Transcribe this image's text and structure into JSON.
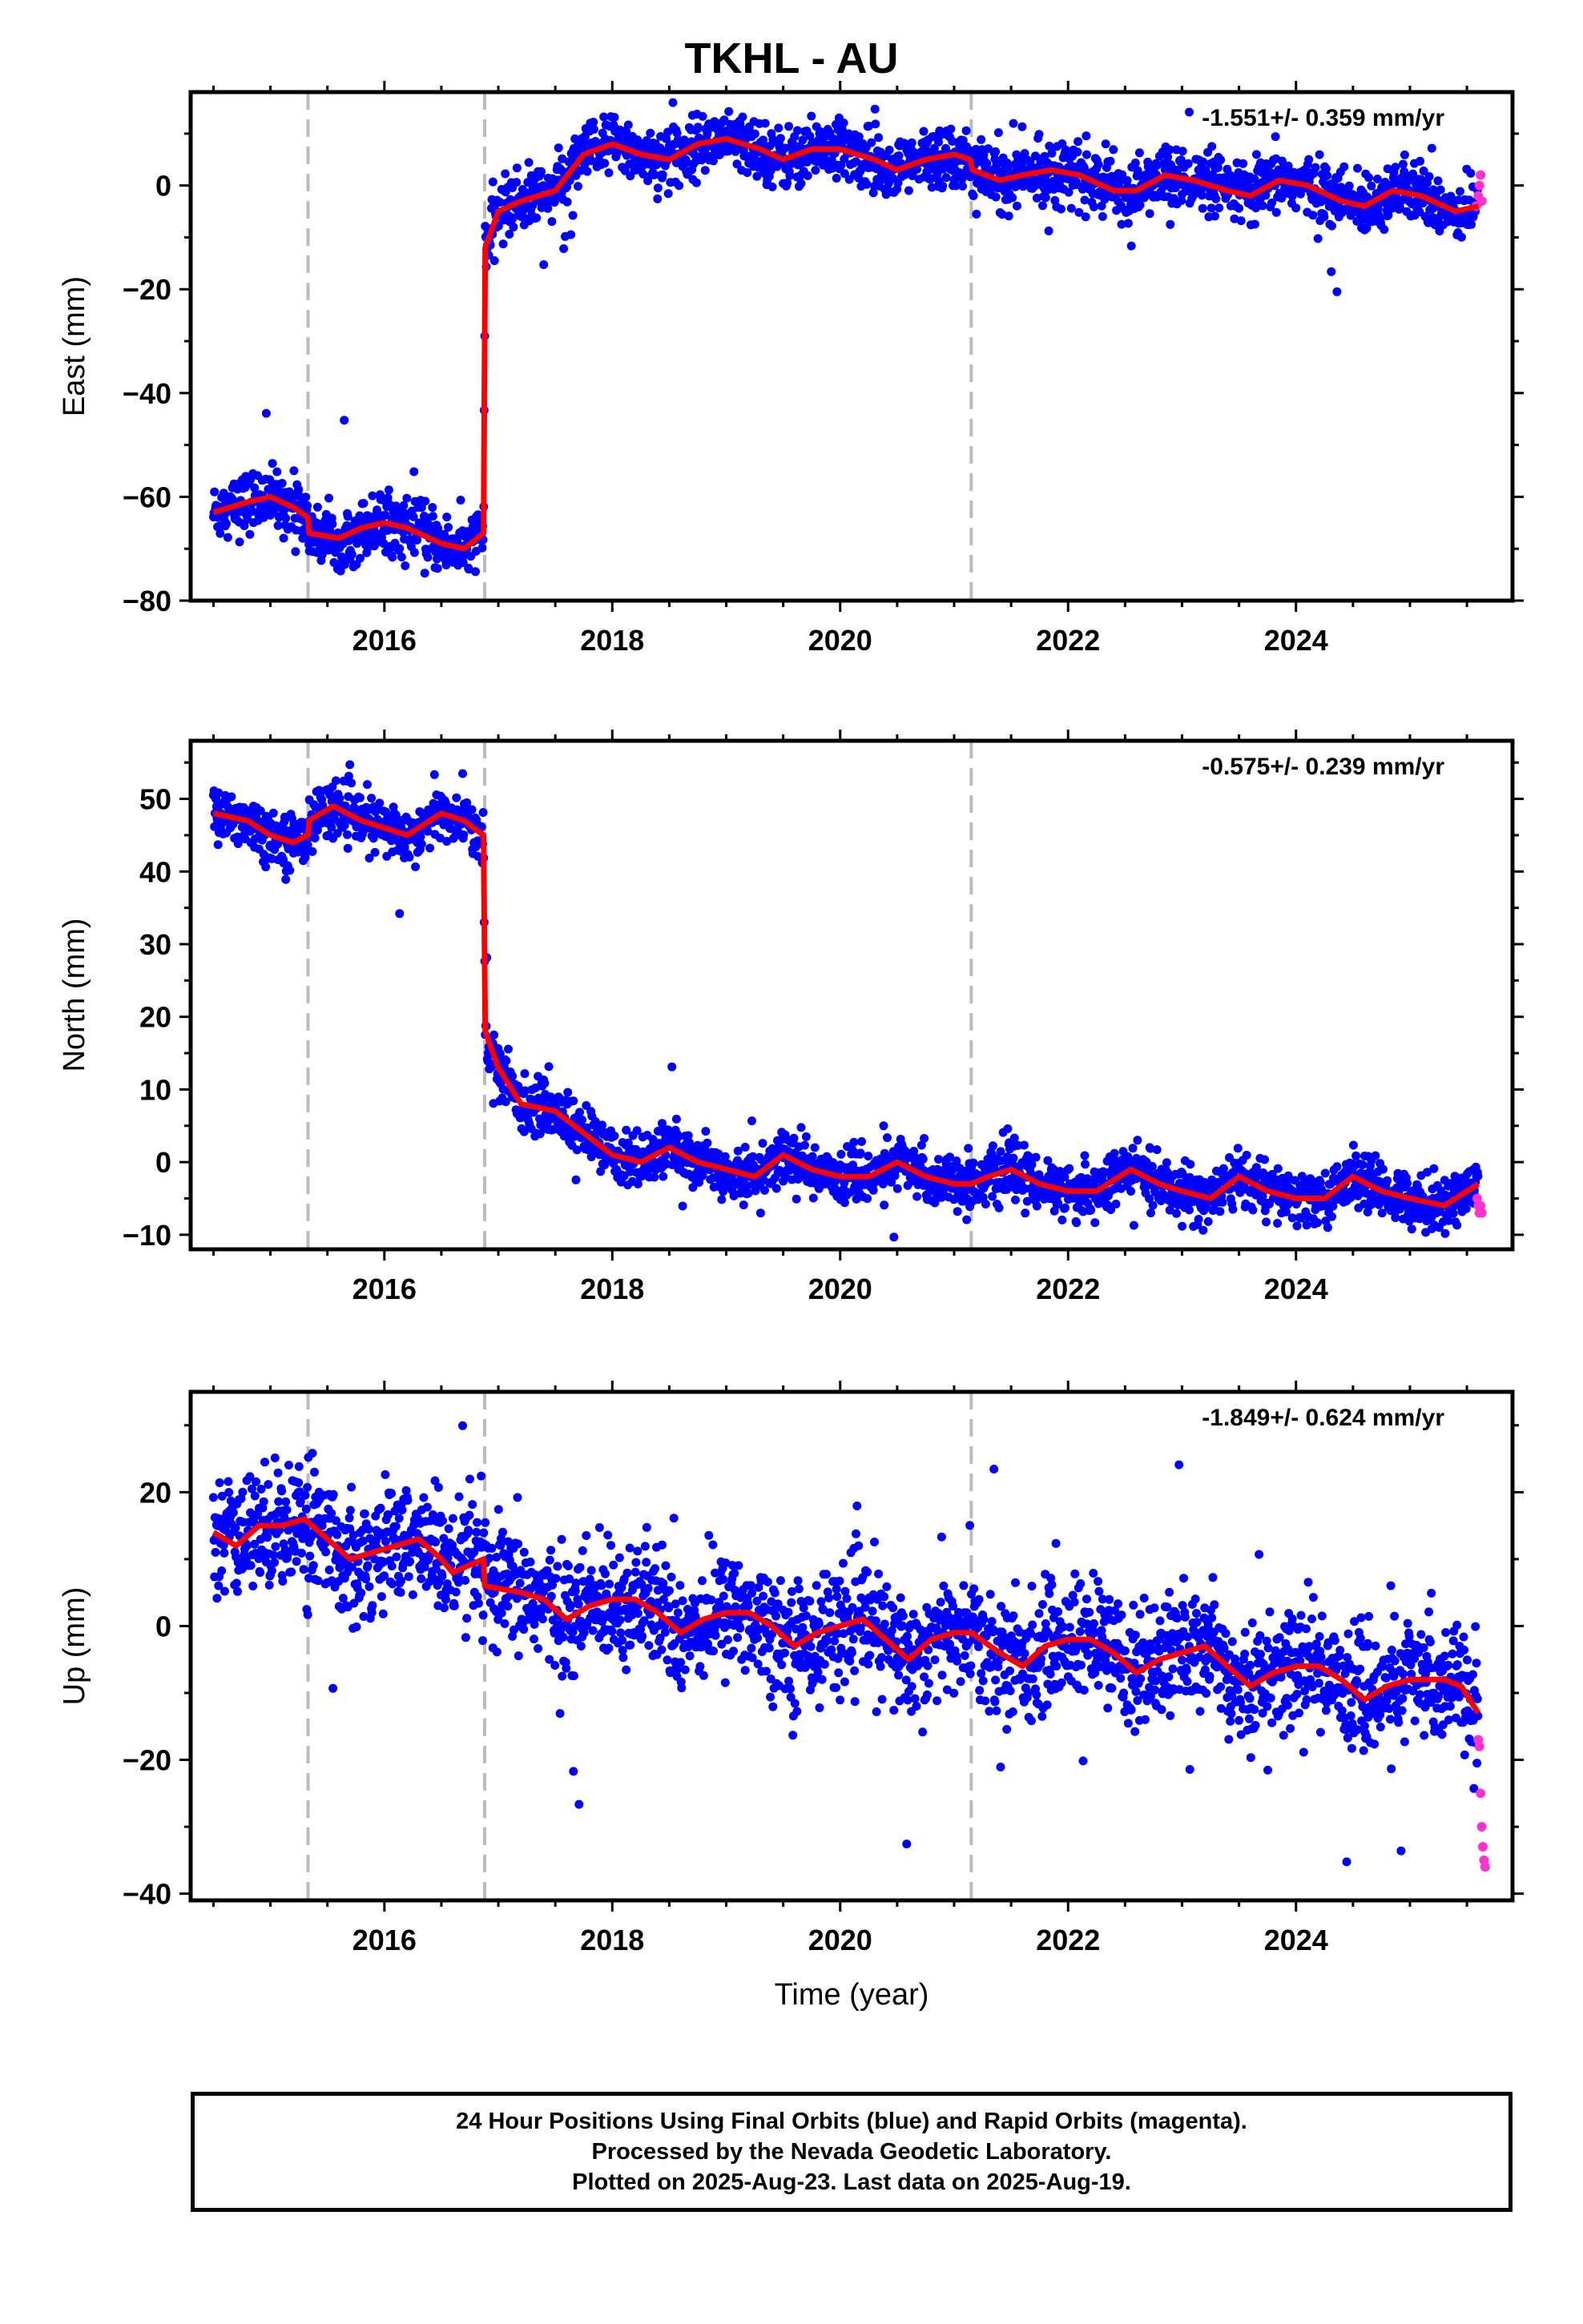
{
  "title": "TKHL - AU",
  "colors": {
    "final": "#0000ff",
    "rapid": "#ff33cc",
    "model": "#ff0000",
    "breaks": "#bbbbbb"
  },
  "footer": {
    "line1": "24 Hour Positions Using Final Orbits (blue) and Rapid Orbits (magenta).",
    "line2": "Processed by the Nevada Geodetic Laboratory.",
    "line3": "Plotted on 2025-Aug-23. Last data on 2025-Aug-19."
  },
  "chart_data": [
    {
      "type": "scatter",
      "ylabel": "East (mm)",
      "rate": "-1.551+/- 0.359 mm/yr",
      "xlim": [
        2014.3,
        2025.9
      ],
      "ylim": [
        -80,
        18
      ],
      "yticks": [
        -80,
        -60,
        -40,
        -20,
        0
      ],
      "xticks": [
        2016,
        2018,
        2020,
        2022,
        2024
      ],
      "breaks": [
        2015.33,
        2016.88,
        2021.15
      ],
      "model": [
        [
          2014.5,
          -63
        ],
        [
          2014.8,
          -61
        ],
        [
          2015.0,
          -60
        ],
        [
          2015.2,
          -62
        ],
        [
          2015.33,
          -64
        ],
        [
          2015.34,
          -67
        ],
        [
          2015.6,
          -68
        ],
        [
          2015.8,
          -66
        ],
        [
          2016.0,
          -65
        ],
        [
          2016.2,
          -66
        ],
        [
          2016.5,
          -69
        ],
        [
          2016.7,
          -70
        ],
        [
          2016.87,
          -67
        ],
        [
          2016.885,
          -12
        ],
        [
          2017.0,
          -5
        ],
        [
          2017.2,
          -3
        ],
        [
          2017.5,
          -1
        ],
        [
          2017.75,
          6
        ],
        [
          2018.0,
          8
        ],
        [
          2018.25,
          6
        ],
        [
          2018.5,
          5
        ],
        [
          2018.75,
          8
        ],
        [
          2019.0,
          9
        ],
        [
          2019.3,
          7
        ],
        [
          2019.5,
          5
        ],
        [
          2019.75,
          7
        ],
        [
          2020.0,
          7
        ],
        [
          2020.3,
          5
        ],
        [
          2020.5,
          3
        ],
        [
          2020.75,
          5
        ],
        [
          2021.0,
          6
        ],
        [
          2021.14,
          5
        ],
        [
          2021.16,
          3
        ],
        [
          2021.4,
          1
        ],
        [
          2021.6,
          2
        ],
        [
          2021.85,
          3
        ],
        [
          2022.1,
          2
        ],
        [
          2022.4,
          -1
        ],
        [
          2022.6,
          -1
        ],
        [
          2022.85,
          2
        ],
        [
          2023.1,
          1
        ],
        [
          2023.4,
          -1
        ],
        [
          2023.6,
          -2
        ],
        [
          2023.85,
          1
        ],
        [
          2024.1,
          0
        ],
        [
          2024.4,
          -3
        ],
        [
          2024.6,
          -4
        ],
        [
          2024.85,
          -1
        ],
        [
          2025.1,
          -2
        ],
        [
          2025.4,
          -5
        ],
        [
          2025.6,
          -4
        ]
      ],
      "noise": 2.8,
      "rapid": [
        [
          2025.58,
          -4
        ],
        [
          2025.6,
          -2
        ],
        [
          2025.61,
          0
        ],
        [
          2025.62,
          2
        ],
        [
          2025.63,
          -3
        ]
      ]
    },
    {
      "type": "scatter",
      "ylabel": "North (mm)",
      "rate": "-0.575+/- 0.239 mm/yr",
      "xlim": [
        2014.3,
        2025.9
      ],
      "ylim": [
        -12,
        58
      ],
      "yticks": [
        -10,
        0,
        10,
        20,
        30,
        40,
        50
      ],
      "xticks": [
        2016,
        2018,
        2020,
        2022,
        2024
      ],
      "breaks": [
        2015.33,
        2016.88,
        2021.15
      ],
      "model": [
        [
          2014.5,
          48
        ],
        [
          2014.8,
          47
        ],
        [
          2015.0,
          45
        ],
        [
          2015.2,
          44
        ],
        [
          2015.33,
          45
        ],
        [
          2015.34,
          47
        ],
        [
          2015.55,
          49
        ],
        [
          2015.8,
          47
        ],
        [
          2016.0,
          46
        ],
        [
          2016.2,
          45
        ],
        [
          2016.5,
          48
        ],
        [
          2016.7,
          47
        ],
        [
          2016.87,
          45
        ],
        [
          2016.885,
          18
        ],
        [
          2017.0,
          13
        ],
        [
          2017.2,
          8
        ],
        [
          2017.5,
          7
        ],
        [
          2017.75,
          4
        ],
        [
          2018.0,
          1
        ],
        [
          2018.25,
          0
        ],
        [
          2018.5,
          2
        ],
        [
          2018.75,
          0
        ],
        [
          2019.0,
          -1
        ],
        [
          2019.25,
          -2
        ],
        [
          2019.5,
          1
        ],
        [
          2019.75,
          -1
        ],
        [
          2020.0,
          -2
        ],
        [
          2020.25,
          -2
        ],
        [
          2020.5,
          0
        ],
        [
          2020.75,
          -2
        ],
        [
          2021.0,
          -3
        ],
        [
          2021.15,
          -3
        ],
        [
          2021.3,
          -2
        ],
        [
          2021.5,
          -1
        ],
        [
          2021.75,
          -3
        ],
        [
          2022.0,
          -4
        ],
        [
          2022.25,
          -4
        ],
        [
          2022.55,
          -1
        ],
        [
          2022.8,
          -3
        ],
        [
          2023.0,
          -4
        ],
        [
          2023.25,
          -5
        ],
        [
          2023.5,
          -2
        ],
        [
          2023.75,
          -4
        ],
        [
          2024.0,
          -5
        ],
        [
          2024.25,
          -5
        ],
        [
          2024.5,
          -2
        ],
        [
          2024.75,
          -4
        ],
        [
          2025.0,
          -5
        ],
        [
          2025.3,
          -6
        ],
        [
          2025.6,
          -3
        ]
      ],
      "noise": 1.8,
      "rapid": [
        [
          2025.59,
          -5
        ],
        [
          2025.6,
          -6
        ],
        [
          2025.61,
          -7
        ],
        [
          2025.62,
          -6
        ],
        [
          2025.63,
          -7
        ]
      ]
    },
    {
      "type": "scatter",
      "ylabel": "Up (mm)",
      "xlabel": "Time (year)",
      "rate": "-1.849+/- 0.624 mm/yr",
      "xlim": [
        2014.3,
        2025.9
      ],
      "ylim": [
        -41,
        35
      ],
      "yticks": [
        -40,
        -20,
        0,
        20
      ],
      "xticks": [
        2016,
        2018,
        2020,
        2022,
        2024
      ],
      "breaks": [
        2015.33,
        2016.88,
        2021.15
      ],
      "model": [
        [
          2014.5,
          14
        ],
        [
          2014.7,
          12
        ],
        [
          2014.9,
          15
        ],
        [
          2015.1,
          15
        ],
        [
          2015.3,
          16
        ],
        [
          2015.5,
          13
        ],
        [
          2015.7,
          10
        ],
        [
          2015.9,
          11
        ],
        [
          2016.1,
          12
        ],
        [
          2016.3,
          13
        ],
        [
          2016.5,
          10
        ],
        [
          2016.6,
          8
        ],
        [
          2016.87,
          10
        ],
        [
          2016.88,
          6
        ],
        [
          2017.2,
          5
        ],
        [
          2017.4,
          4
        ],
        [
          2017.6,
          1
        ],
        [
          2017.8,
          3
        ],
        [
          2018.0,
          4
        ],
        [
          2018.2,
          4
        ],
        [
          2018.4,
          2
        ],
        [
          2018.6,
          -1
        ],
        [
          2018.8,
          1
        ],
        [
          2019.0,
          2
        ],
        [
          2019.2,
          2
        ],
        [
          2019.4,
          0
        ],
        [
          2019.6,
          -3
        ],
        [
          2019.8,
          -1
        ],
        [
          2020.0,
          0
        ],
        [
          2020.2,
          1
        ],
        [
          2020.4,
          -2
        ],
        [
          2020.6,
          -5
        ],
        [
          2020.8,
          -2
        ],
        [
          2021.0,
          -1
        ],
        [
          2021.15,
          -1
        ],
        [
          2021.4,
          -4
        ],
        [
          2021.6,
          -6
        ],
        [
          2021.8,
          -3
        ],
        [
          2022.0,
          -2
        ],
        [
          2022.2,
          -2
        ],
        [
          2022.4,
          -4
        ],
        [
          2022.6,
          -7
        ],
        [
          2022.8,
          -5
        ],
        [
          2023.0,
          -4
        ],
        [
          2023.2,
          -3
        ],
        [
          2023.4,
          -6
        ],
        [
          2023.6,
          -9
        ],
        [
          2023.8,
          -7
        ],
        [
          2024.0,
          -6
        ],
        [
          2024.2,
          -6
        ],
        [
          2024.4,
          -8
        ],
        [
          2024.6,
          -11
        ],
        [
          2024.8,
          -9
        ],
        [
          2025.0,
          -8
        ],
        [
          2025.3,
          -8
        ],
        [
          2025.45,
          -9
        ],
        [
          2025.6,
          -13
        ]
      ],
      "noise": 4.5,
      "rapid": [
        [
          2025.6,
          -17
        ],
        [
          2025.61,
          -18
        ],
        [
          2025.62,
          -25
        ],
        [
          2025.63,
          -30
        ],
        [
          2025.64,
          -33
        ],
        [
          2025.65,
          -35
        ],
        [
          2025.66,
          -36
        ]
      ]
    }
  ]
}
